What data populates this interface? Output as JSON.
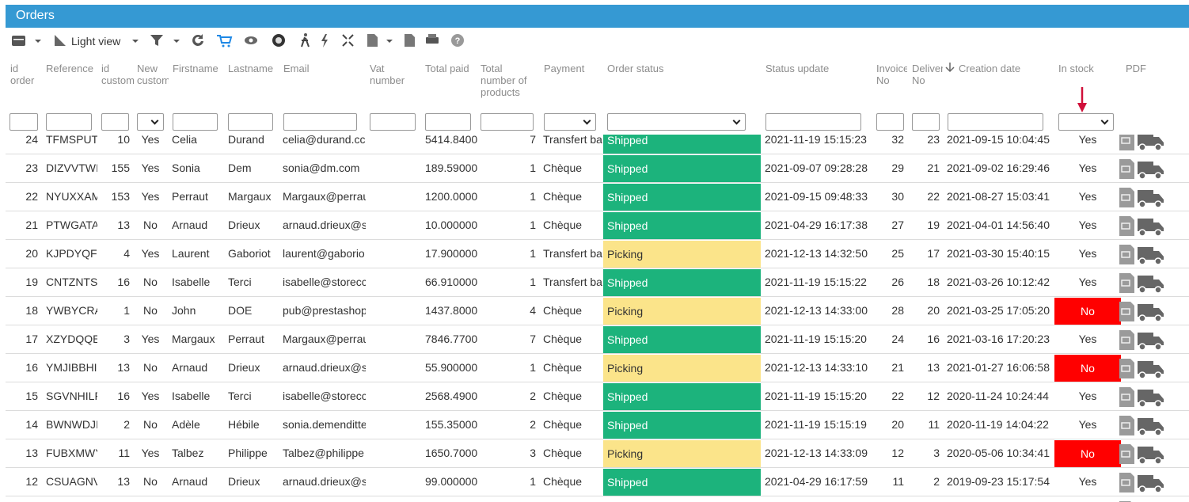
{
  "header": {
    "title": "Orders"
  },
  "toolbar": {
    "view": "Light view"
  },
  "table": {
    "columns": [
      "id order",
      "Reference",
      "id custom",
      "New custom",
      "Firstname",
      "Lastname",
      "Email",
      "Vat number",
      "Total paid",
      "Total number of products",
      "Payment",
      "Order status",
      "Status update",
      "Invoice No",
      "Deliver No",
      "Creation date",
      "In stock",
      "PDF"
    ],
    "cell_styles": {
      "Shipped": {
        "bg": "#1cb37c",
        "fg": "#ffffff"
      },
      "Picking": {
        "bg": "#fbe48a",
        "fg": "#333333"
      },
      "No": {
        "bg": "#ff0000",
        "fg": "#ffffff"
      }
    },
    "rows": [
      [
        "24",
        "TFMSPUT",
        "10",
        "Yes",
        "Celia",
        "Durand",
        "celia@durand.cc",
        null,
        "5414.8400",
        "7",
        "Transfert ba",
        "Shipped",
        "2021-11-19 15:15:23",
        "32",
        "23",
        "2021-09-15 10:04:45",
        "Yes"
      ],
      [
        "23",
        "DIZVVTWI",
        "155",
        "Yes",
        "Sonia",
        "Dem",
        "sonia@dm.com",
        null,
        "189.59000",
        "1",
        "Chèque",
        "Shipped",
        "2021-09-07 09:28:28",
        "29",
        "21",
        "2021-09-02 16:29:46",
        "Yes"
      ],
      [
        "22",
        "NYUXXAM",
        "153",
        "Yes",
        "Perraut",
        "Margaux",
        "Margaux@perrau",
        null,
        "1200.0000",
        "1",
        "Chèque",
        "Shipped",
        "2021-09-15 09:48:33",
        "30",
        "22",
        "2021-08-27 15:03:41",
        "Yes"
      ],
      [
        "21",
        "PTWGATA",
        "13",
        "No",
        "Arnaud",
        "Drieux",
        "arnaud.drieux@s",
        null,
        "10.000000",
        "1",
        "Chèque",
        "Shipped",
        "2021-04-29 16:17:38",
        "27",
        "19",
        "2021-04-01 14:56:40",
        "Yes"
      ],
      [
        "20",
        "KJPDYQF",
        "4",
        "Yes",
        "Laurent",
        "Gaboriot",
        "laurent@gaborio",
        null,
        "17.900000",
        "1",
        "Transfert ba",
        "Picking",
        "2021-12-13 14:32:50",
        "25",
        "17",
        "2021-03-30 15:40:15",
        "Yes"
      ],
      [
        "19",
        "CNTZNTS",
        "16",
        "No",
        "Isabelle",
        "Terci",
        "isabelle@storecc",
        null,
        "66.910000",
        "1",
        "Transfert ba",
        "Shipped",
        "2021-11-19 15:15:22",
        "26",
        "18",
        "2021-03-26 10:12:42",
        "Yes"
      ],
      [
        "18",
        "YWBYCRA",
        "1",
        "No",
        "John",
        "DOE",
        "pub@prestashop",
        null,
        "1437.8000",
        "4",
        "Chèque",
        "Picking",
        "2021-12-13 14:33:00",
        "28",
        "20",
        "2021-03-25 17:05:20",
        "No"
      ],
      [
        "17",
        "XZYDQQE",
        "3",
        "Yes",
        "Margaux",
        "Perraut",
        "Margaux@perrau",
        null,
        "7846.7700",
        "7",
        "Chèque",
        "Shipped",
        "2021-11-19 15:15:20",
        "24",
        "16",
        "2021-03-16 17:20:23",
        "Yes"
      ],
      [
        "16",
        "YMJIBBHI",
        "13",
        "No",
        "Arnaud",
        "Drieux",
        "arnaud.drieux@s",
        null,
        "55.900000",
        "1",
        "Chèque",
        "Picking",
        "2021-12-13 14:33:10",
        "21",
        "13",
        "2021-01-27 16:06:58",
        "No"
      ],
      [
        "15",
        "SGVNHILF",
        "16",
        "Yes",
        "Isabelle",
        "Terci",
        "isabelle@storecc",
        null,
        "2568.4900",
        "2",
        "Chèque",
        "Shipped",
        "2021-11-19 15:15:20",
        "22",
        "12",
        "2020-11-24 10:24:44",
        "Yes"
      ],
      [
        "14",
        "BWNWDJI",
        "2",
        "No",
        "Adèle",
        "Hébile",
        "sonia.demenditte",
        null,
        "155.35000",
        "2",
        "Chèque",
        "Shipped",
        "2021-11-19 15:15:19",
        "20",
        "11",
        "2020-11-19 14:04:22",
        "Yes"
      ],
      [
        "13",
        "FUBXMWY",
        "11",
        "Yes",
        "Talbez",
        "Philippe",
        "Talbez@philippe",
        null,
        "1650.7000",
        "3",
        "Chèque",
        "Picking",
        "2021-12-13 14:33:09",
        "12",
        "3",
        "2020-05-06 10:34:41",
        "No"
      ],
      [
        "12",
        "CSUAGNV",
        "13",
        "No",
        "Arnaud",
        "Drieux",
        "arnaud.drieux@s",
        null,
        "99.000000",
        "1",
        "Chèque",
        "Shipped",
        "2021-04-29 16:17:59",
        "11",
        "2",
        "2019-09-23 15:17:54",
        "Yes"
      ]
    ]
  }
}
